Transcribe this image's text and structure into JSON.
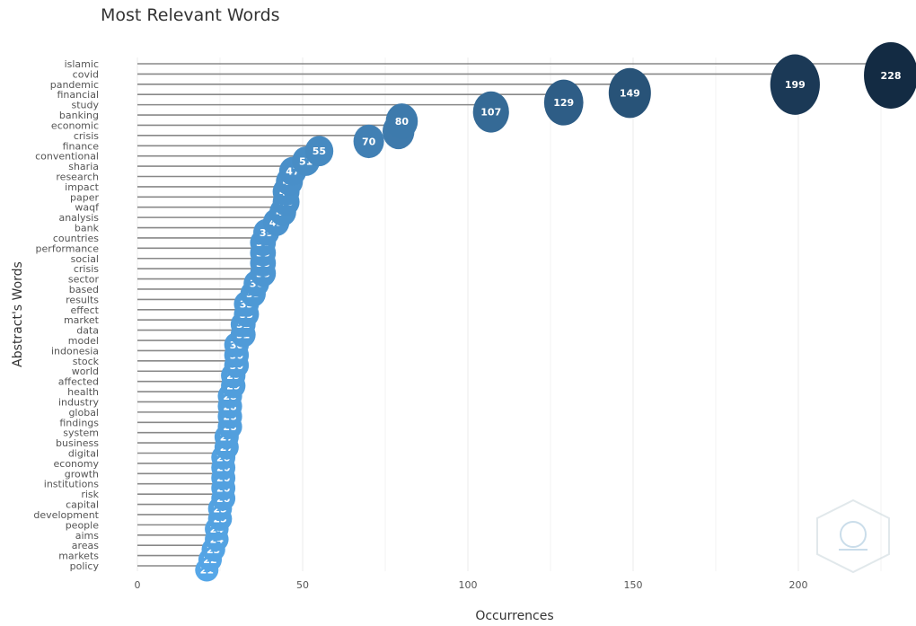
{
  "chart_data": {
    "type": "scatter",
    "title": "Most Relevant Words",
    "xlabel": "Occurrences",
    "ylabel": "Abstract's Words",
    "xlim": [
      0,
      230
    ],
    "xticks": [
      0,
      50,
      100,
      150,
      200
    ],
    "grid": true,
    "colors": {
      "low": "#56a7e8",
      "high": "#132b43",
      "stem": "#888888",
      "grid": "#ebebeb"
    },
    "words": [
      "islamic",
      "covid",
      "pandemic",
      "financial",
      "study",
      "banking",
      "economic",
      "crisis",
      "finance",
      "conventional",
      "sharia",
      "research",
      "impact",
      "paper",
      "waqf",
      "analysis",
      "bank",
      "countries",
      "performance",
      "social",
      "crisis",
      "sector",
      "based",
      "results",
      "effect",
      "market",
      "data",
      "model",
      "indonesia",
      "stock",
      "world",
      "affected",
      "health",
      "industry",
      "global",
      "findings",
      "system",
      "business",
      "digital",
      "economy",
      "growth",
      "institutions",
      "risk",
      "capital",
      "development",
      "people",
      "aims",
      "areas",
      "markets",
      "policy"
    ],
    "values": [
      228,
      199,
      149,
      129,
      107,
      80,
      79,
      70,
      55,
      51,
      47,
      46,
      45,
      45,
      44,
      42,
      39,
      38,
      38,
      38,
      38,
      36,
      35,
      33,
      33,
      32,
      32,
      30,
      30,
      30,
      29,
      29,
      28,
      28,
      28,
      28,
      27,
      27,
      26,
      26,
      26,
      26,
      26,
      25,
      25,
      24,
      24,
      23,
      22,
      21
    ]
  }
}
